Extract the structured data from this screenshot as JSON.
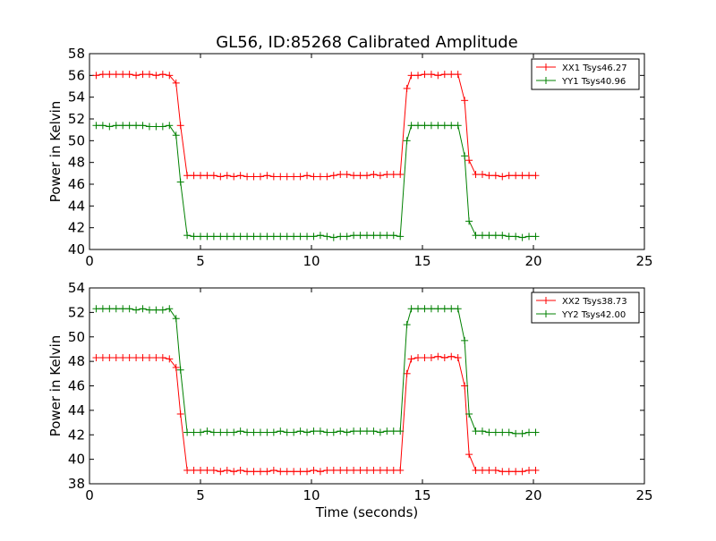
{
  "figure": {
    "title": "GL56, ID:85268 Calibrated Amplitude",
    "xlabel": "Time (seconds)"
  },
  "colors": {
    "red": "#ff0000",
    "green": "#008000",
    "axes": "#000000"
  },
  "chart_data": [
    {
      "type": "line",
      "title": "GL56, ID:85268 Calibrated Amplitude",
      "xlabel": "",
      "ylabel": "Power in Kelvin",
      "xlim": [
        0,
        25
      ],
      "ylim": [
        40,
        58
      ],
      "xticks": [
        0,
        5,
        10,
        15,
        20,
        25
      ],
      "yticks": [
        40,
        42,
        44,
        46,
        48,
        50,
        52,
        54,
        56,
        58
      ],
      "grid": false,
      "legend_position": "top-right",
      "x": [
        0.3,
        0.6,
        0.9,
        1.2,
        1.5,
        1.8,
        2.1,
        2.4,
        2.7,
        3.0,
        3.3,
        3.6,
        3.9,
        4.1,
        4.4,
        4.7,
        5.0,
        5.3,
        5.6,
        5.9,
        6.2,
        6.5,
        6.8,
        7.1,
        7.4,
        7.7,
        8.0,
        8.3,
        8.6,
        8.9,
        9.2,
        9.5,
        9.8,
        10.1,
        10.4,
        10.7,
        11.0,
        11.3,
        11.6,
        11.9,
        12.2,
        12.5,
        12.8,
        13.1,
        13.4,
        13.7,
        14.0,
        14.3,
        14.5,
        14.8,
        15.1,
        15.4,
        15.7,
        16.0,
        16.3,
        16.6,
        16.9,
        17.1,
        17.4,
        17.7,
        18.0,
        18.3,
        18.6,
        18.9,
        19.2,
        19.5,
        19.8,
        20.1
      ],
      "series": [
        {
          "name": "XX1 Tsys46.27",
          "color": "#ff0000",
          "values": [
            56.0,
            56.1,
            56.1,
            56.1,
            56.1,
            56.1,
            56.0,
            56.1,
            56.1,
            56.0,
            56.1,
            56.0,
            55.3,
            51.4,
            46.8,
            46.8,
            46.8,
            46.8,
            46.8,
            46.7,
            46.8,
            46.7,
            46.8,
            46.7,
            46.7,
            46.7,
            46.8,
            46.7,
            46.7,
            46.7,
            46.7,
            46.7,
            46.8,
            46.7,
            46.7,
            46.7,
            46.8,
            46.9,
            46.9,
            46.8,
            46.8,
            46.8,
            46.9,
            46.8,
            46.9,
            46.9,
            46.9,
            54.8,
            56.0,
            56.0,
            56.1,
            56.1,
            56.0,
            56.1,
            56.1,
            56.1,
            53.7,
            48.2,
            46.9,
            46.9,
            46.8,
            46.8,
            46.7,
            46.8,
            46.8,
            46.8,
            46.8,
            46.8
          ]
        },
        {
          "name": "YY1 Tsys40.96",
          "color": "#008000",
          "values": [
            51.4,
            51.4,
            51.3,
            51.4,
            51.4,
            51.4,
            51.4,
            51.4,
            51.3,
            51.3,
            51.3,
            51.4,
            50.5,
            46.2,
            41.3,
            41.2,
            41.2,
            41.2,
            41.2,
            41.2,
            41.2,
            41.2,
            41.2,
            41.2,
            41.2,
            41.2,
            41.2,
            41.2,
            41.2,
            41.2,
            41.2,
            41.2,
            41.2,
            41.2,
            41.3,
            41.2,
            41.1,
            41.2,
            41.2,
            41.3,
            41.3,
            41.3,
            41.3,
            41.3,
            41.3,
            41.3,
            41.2,
            50.0,
            51.4,
            51.4,
            51.4,
            51.4,
            51.4,
            51.4,
            51.4,
            51.4,
            48.6,
            42.6,
            41.3,
            41.3,
            41.3,
            41.3,
            41.3,
            41.2,
            41.2,
            41.1,
            41.2,
            41.2
          ]
        }
      ]
    },
    {
      "type": "line",
      "title": "",
      "xlabel": "Time (seconds)",
      "ylabel": "Power in Kelvin",
      "xlim": [
        0,
        25
      ],
      "ylim": [
        38,
        54
      ],
      "xticks": [
        0,
        5,
        10,
        15,
        20,
        25
      ],
      "yticks": [
        38,
        40,
        42,
        44,
        46,
        48,
        50,
        52,
        54
      ],
      "grid": false,
      "legend_position": "top-right",
      "x": [
        0.3,
        0.6,
        0.9,
        1.2,
        1.5,
        1.8,
        2.1,
        2.4,
        2.7,
        3.0,
        3.3,
        3.6,
        3.9,
        4.1,
        4.4,
        4.7,
        5.0,
        5.3,
        5.6,
        5.9,
        6.2,
        6.5,
        6.8,
        7.1,
        7.4,
        7.7,
        8.0,
        8.3,
        8.6,
        8.9,
        9.2,
        9.5,
        9.8,
        10.1,
        10.4,
        10.7,
        11.0,
        11.3,
        11.6,
        11.9,
        12.2,
        12.5,
        12.8,
        13.1,
        13.4,
        13.7,
        14.0,
        14.3,
        14.5,
        14.8,
        15.1,
        15.4,
        15.7,
        16.0,
        16.3,
        16.6,
        16.9,
        17.1,
        17.4,
        17.7,
        18.0,
        18.3,
        18.6,
        18.9,
        19.2,
        19.5,
        19.8,
        20.1
      ],
      "series": [
        {
          "name": "XX2 Tsys38.73",
          "color": "#ff0000",
          "values": [
            48.3,
            48.3,
            48.3,
            48.3,
            48.3,
            48.3,
            48.3,
            48.3,
            48.3,
            48.3,
            48.3,
            48.2,
            47.5,
            43.7,
            39.1,
            39.1,
            39.1,
            39.1,
            39.1,
            39.0,
            39.1,
            39.0,
            39.1,
            39.0,
            39.0,
            39.0,
            39.0,
            39.1,
            39.0,
            39.0,
            39.0,
            39.0,
            39.0,
            39.1,
            39.0,
            39.1,
            39.1,
            39.1,
            39.1,
            39.1,
            39.1,
            39.1,
            39.1,
            39.1,
            39.1,
            39.1,
            39.1,
            47.0,
            48.2,
            48.3,
            48.3,
            48.3,
            48.4,
            48.3,
            48.4,
            48.3,
            46.0,
            40.4,
            39.1,
            39.1,
            39.1,
            39.1,
            39.0,
            39.0,
            39.0,
            39.0,
            39.1,
            39.1
          ]
        },
        {
          "name": "YY2 Tsys42.00",
          "color": "#008000",
          "values": [
            52.3,
            52.3,
            52.3,
            52.3,
            52.3,
            52.3,
            52.2,
            52.3,
            52.2,
            52.2,
            52.2,
            52.3,
            51.5,
            47.3,
            42.2,
            42.2,
            42.2,
            42.3,
            42.2,
            42.2,
            42.2,
            42.2,
            42.3,
            42.2,
            42.2,
            42.2,
            42.2,
            42.2,
            42.3,
            42.2,
            42.2,
            42.3,
            42.2,
            42.3,
            42.3,
            42.2,
            42.2,
            42.3,
            42.2,
            42.3,
            42.3,
            42.3,
            42.3,
            42.2,
            42.3,
            42.3,
            42.3,
            51.0,
            52.3,
            52.3,
            52.3,
            52.3,
            52.3,
            52.3,
            52.3,
            52.3,
            49.7,
            43.7,
            42.3,
            42.3,
            42.2,
            42.2,
            42.2,
            42.2,
            42.1,
            42.1,
            42.2,
            42.2
          ]
        }
      ]
    }
  ]
}
